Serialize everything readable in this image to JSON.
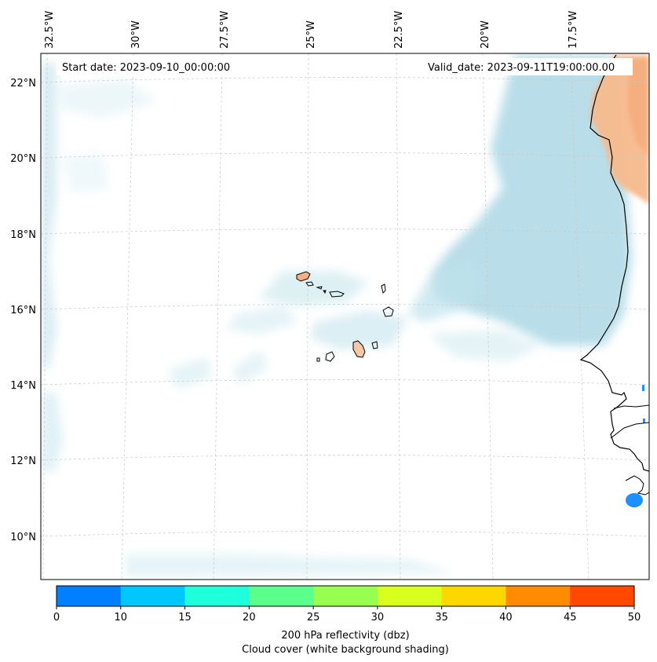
{
  "map": {
    "start_date": "Start date: 2023-09-10_00:00:00",
    "valid_date": "Valid_date: 2023-09-11T19:00:00.00",
    "lon_labels": [
      "32.5°W",
      "30°W",
      "27.5°W",
      "25°W",
      "22.5°W",
      "20°W",
      "17.5°W"
    ],
    "lat_labels": [
      "22°N",
      "20°N",
      "18°N",
      "16°N",
      "14°N",
      "12°N",
      "10°N"
    ]
  },
  "colorbar": {
    "ticks": [
      "0",
      "10",
      "15",
      "20",
      "25",
      "30",
      "35",
      "40",
      "45",
      "50"
    ],
    "colors": [
      "#0080ff",
      "#00c8ff",
      "#1effdc",
      "#5aff8c",
      "#96ff50",
      "#d8ff1e",
      "#ffd700",
      "#ff8c00",
      "#ff4800"
    ],
    "label_line1": "200 hPa reflectivity (dbz)",
    "label_line2": "Cloud cover (white background shading)"
  }
}
